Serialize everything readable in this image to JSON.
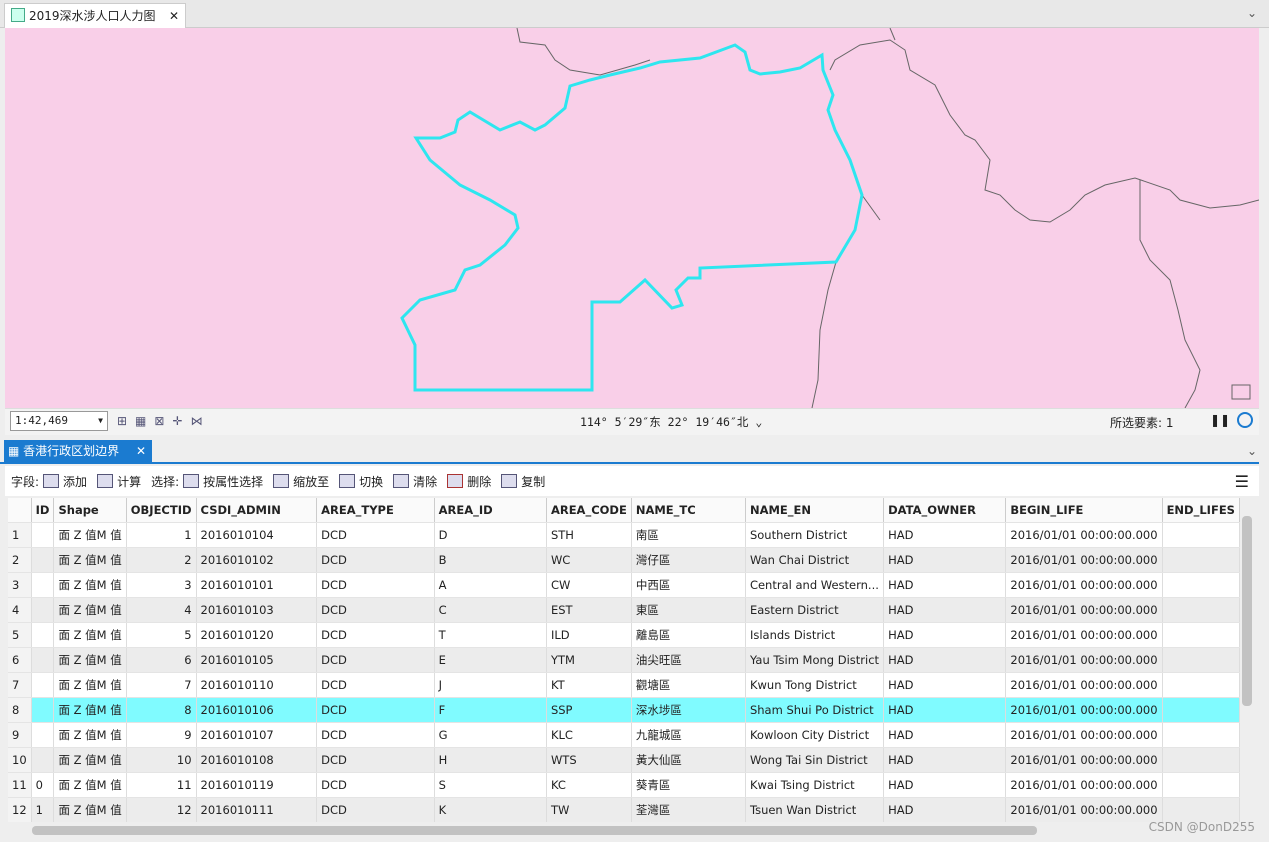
{
  "map_tab": {
    "title": "2019深水涉人口人力图"
  },
  "map_status": {
    "scale": "1:42,469",
    "coordinates": "114° 5′29″东 22° 19′46″北",
    "selected": "所选要素: 1"
  },
  "table_tab": {
    "title": "香港行政区划边界"
  },
  "toolbar": {
    "fields_label": "字段:",
    "add": "添加",
    "calculate": "计算",
    "select_label": "选择:",
    "select_by_attributes": "按属性选择",
    "zoom_to": "缩放至",
    "switch": "切换",
    "clear": "清除",
    "delete": "删除",
    "copy": "复制"
  },
  "table": {
    "columns": [
      "ID",
      "Shape",
      "OBJECTID",
      "CSDI_ADMIN",
      "AREA_TYPE",
      "AREA_ID",
      "AREA_CODE",
      "NAME_TC",
      "NAME_EN",
      "DATA_OWNER",
      "BEGIN_LIFE",
      "END_LIFES"
    ],
    "rows": [
      {
        "n": 1,
        "shape": "面 Z 值M 值",
        "objectid": 1,
        "csdi": "2016010104",
        "type": "DCD",
        "area_id": "D",
        "code": "STH",
        "name_tc": "南區",
        "name_en": "Southern District",
        "owner": "HAD",
        "begin": "2016/01/01 00:00:00.000"
      },
      {
        "n": 2,
        "shape": "面 Z 值M 值",
        "objectid": 2,
        "csdi": "2016010102",
        "type": "DCD",
        "area_id": "B",
        "code": "WC",
        "name_tc": "灣仔區",
        "name_en": "Wan Chai District",
        "owner": "HAD",
        "begin": "2016/01/01 00:00:00.000"
      },
      {
        "n": 3,
        "shape": "面 Z 值M 值",
        "objectid": 3,
        "csdi": "2016010101",
        "type": "DCD",
        "area_id": "A",
        "code": "CW",
        "name_tc": "中西區",
        "name_en": "Central and Western...",
        "owner": "HAD",
        "begin": "2016/01/01 00:00:00.000"
      },
      {
        "n": 4,
        "shape": "面 Z 值M 值",
        "objectid": 4,
        "csdi": "2016010103",
        "type": "DCD",
        "area_id": "C",
        "code": "EST",
        "name_tc": "東區",
        "name_en": "Eastern District",
        "owner": "HAD",
        "begin": "2016/01/01 00:00:00.000"
      },
      {
        "n": 5,
        "shape": "面 Z 值M 值",
        "objectid": 5,
        "csdi": "2016010120",
        "type": "DCD",
        "area_id": "T",
        "code": "ILD",
        "name_tc": "離島區",
        "name_en": "Islands District",
        "owner": "HAD",
        "begin": "2016/01/01 00:00:00.000"
      },
      {
        "n": 6,
        "shape": "面 Z 值M 值",
        "objectid": 6,
        "csdi": "2016010105",
        "type": "DCD",
        "area_id": "E",
        "code": "YTM",
        "name_tc": "油尖旺區",
        "name_en": "Yau Tsim Mong District",
        "owner": "HAD",
        "begin": "2016/01/01 00:00:00.000"
      },
      {
        "n": 7,
        "shape": "面 Z 值M 值",
        "objectid": 7,
        "csdi": "2016010110",
        "type": "DCD",
        "area_id": "J",
        "code": "KT",
        "name_tc": "觀塘區",
        "name_en": "Kwun Tong District",
        "owner": "HAD",
        "begin": "2016/01/01 00:00:00.000"
      },
      {
        "n": 8,
        "shape": "面 Z 值M 值",
        "objectid": 8,
        "csdi": "2016010106",
        "type": "DCD",
        "area_id": "F",
        "code": "SSP",
        "name_tc": "深水埗區",
        "name_en": "Sham Shui Po District",
        "owner": "HAD",
        "begin": "2016/01/01 00:00:00.000"
      },
      {
        "n": 9,
        "shape": "面 Z 值M 值",
        "objectid": 9,
        "csdi": "2016010107",
        "type": "DCD",
        "area_id": "G",
        "code": "KLC",
        "name_tc": "九龍城區",
        "name_en": "Kowloon City District",
        "owner": "HAD",
        "begin": "2016/01/01 00:00:00.000"
      },
      {
        "n": 10,
        "shape": "面 Z 值M 值",
        "objectid": 10,
        "csdi": "2016010108",
        "type": "DCD",
        "area_id": "H",
        "code": "WTS",
        "name_tc": "黃大仙區",
        "name_en": "Wong Tai Sin District",
        "owner": "HAD",
        "begin": "2016/01/01 00:00:00.000"
      },
      {
        "n": 11,
        "id": "0",
        "shape": "面 Z 值M 值",
        "objectid": 11,
        "csdi": "2016010119",
        "type": "DCD",
        "area_id": "S",
        "code": "KC",
        "name_tc": "葵青區",
        "name_en": "Kwai Tsing District",
        "owner": "HAD",
        "begin": "2016/01/01 00:00:00.000"
      },
      {
        "n": 12,
        "id": "1",
        "shape": "面 Z 值M 值",
        "objectid": 12,
        "csdi": "2016010111",
        "type": "DCD",
        "area_id": "K",
        "code": "TW",
        "name_tc": "荃灣區",
        "name_en": "Tsuen Wan District",
        "owner": "HAD",
        "begin": "2016/01/01 00:00:00.000"
      }
    ]
  },
  "watermark": "CSDN @DonD255"
}
